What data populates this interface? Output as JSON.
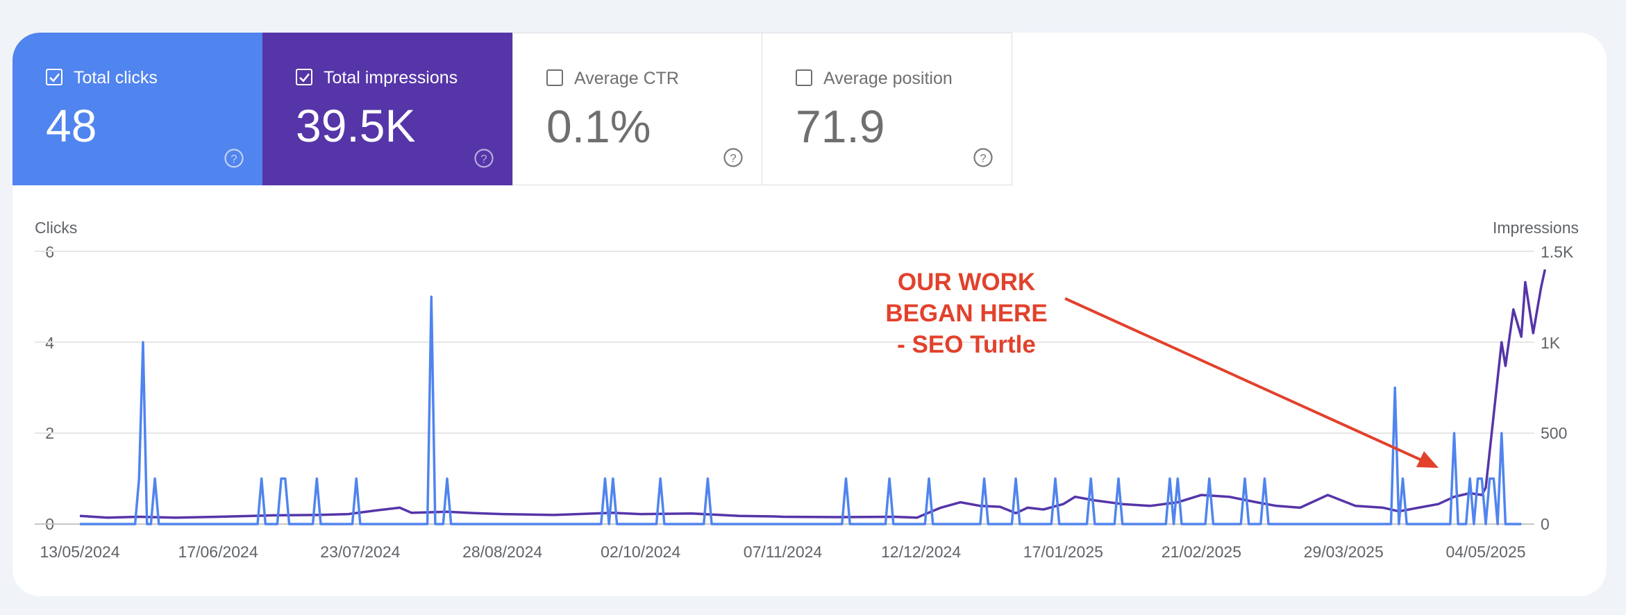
{
  "tiles": [
    {
      "label": "Total clicks",
      "value": "48",
      "checked": true,
      "color": "#5084ee"
    },
    {
      "label": "Total impressions",
      "value": "39.5K",
      "checked": true,
      "color": "#5535a8"
    },
    {
      "label": "Average CTR",
      "value": "0.1%",
      "checked": false
    },
    {
      "label": "Average position",
      "value": "71.9",
      "checked": false
    }
  ],
  "annotation": {
    "line1": "OUR WORK",
    "line2": "BEGAN HERE",
    "line3": "- SEO Turtle",
    "color": "#e2412c"
  },
  "chart_data": {
    "type": "line",
    "left_axis_label": "Clicks",
    "right_axis_label": "Impressions",
    "left_ticks": [
      "6",
      "4",
      "2",
      "0"
    ],
    "right_ticks": [
      "1.5K",
      "1K",
      "500",
      "0"
    ],
    "left_ylim": [
      0,
      6
    ],
    "right_ylim": [
      0,
      1500
    ],
    "x_tick_labels": [
      "13/05/2024",
      "17/06/2024",
      "23/07/2024",
      "28/08/2024",
      "02/10/2024",
      "07/11/2024",
      "12/12/2024",
      "17/01/2025",
      "21/02/2025",
      "29/03/2025",
      "04/05/2025"
    ],
    "x_range": [
      "13/05/2024",
      "08/05/2025"
    ],
    "grid": true,
    "series": [
      {
        "name": "Clicks",
        "axis": "left",
        "color": "#5084ee",
        "points": [
          [
            "13/05/2024",
            0
          ],
          [
            "27/05/2024",
            0
          ],
          [
            "28/05/2024",
            1
          ],
          [
            "29/05/2024",
            4
          ],
          [
            "30/05/2024",
            0
          ],
          [
            "31/05/2024",
            0
          ],
          [
            "01/06/2024",
            1
          ],
          [
            "02/06/2024",
            0
          ],
          [
            "27/06/2024",
            0
          ],
          [
            "28/06/2024",
            1
          ],
          [
            "29/06/2024",
            0
          ],
          [
            "02/07/2024",
            0
          ],
          [
            "03/07/2024",
            1
          ],
          [
            "04/07/2024",
            1
          ],
          [
            "05/07/2024",
            0
          ],
          [
            "11/07/2024",
            0
          ],
          [
            "12/07/2024",
            1
          ],
          [
            "13/07/2024",
            0
          ],
          [
            "21/07/2024",
            0
          ],
          [
            "22/07/2024",
            1
          ],
          [
            "23/07/2024",
            0
          ],
          [
            "09/08/2024",
            0
          ],
          [
            "10/08/2024",
            5
          ],
          [
            "11/08/2024",
            0
          ],
          [
            "13/08/2024",
            0
          ],
          [
            "14/08/2024",
            1
          ],
          [
            "15/08/2024",
            0
          ],
          [
            "22/09/2024",
            0
          ],
          [
            "23/09/2024",
            1
          ],
          [
            "24/09/2024",
            0
          ],
          [
            "25/09/2024",
            1
          ],
          [
            "26/09/2024",
            0
          ],
          [
            "06/10/2024",
            0
          ],
          [
            "07/10/2024",
            1
          ],
          [
            "08/10/2024",
            0
          ],
          [
            "18/10/2024",
            0
          ],
          [
            "19/10/2024",
            1
          ],
          [
            "20/10/2024",
            0
          ],
          [
            "22/11/2024",
            0
          ],
          [
            "23/11/2024",
            1
          ],
          [
            "24/11/2024",
            0
          ],
          [
            "03/12/2024",
            0
          ],
          [
            "04/12/2024",
            1
          ],
          [
            "05/12/2024",
            0
          ],
          [
            "13/12/2024",
            0
          ],
          [
            "14/12/2024",
            1
          ],
          [
            "15/12/2024",
            0
          ],
          [
            "27/12/2024",
            0
          ],
          [
            "28/12/2024",
            1
          ],
          [
            "29/12/2024",
            0
          ],
          [
            "04/01/2025",
            0
          ],
          [
            "05/01/2025",
            1
          ],
          [
            "06/01/2025",
            0
          ],
          [
            "14/01/2025",
            0
          ],
          [
            "15/01/2025",
            1
          ],
          [
            "16/01/2025",
            0
          ],
          [
            "23/01/2025",
            0
          ],
          [
            "24/01/2025",
            1
          ],
          [
            "25/01/2025",
            0
          ],
          [
            "30/01/2025",
            0
          ],
          [
            "31/01/2025",
            1
          ],
          [
            "01/02/2025",
            0
          ],
          [
            "12/02/2025",
            0
          ],
          [
            "13/02/2025",
            1
          ],
          [
            "14/02/2025",
            0
          ],
          [
            "15/02/2025",
            1
          ],
          [
            "16/02/2025",
            0
          ],
          [
            "22/02/2025",
            0
          ],
          [
            "23/02/2025",
            1
          ],
          [
            "24/02/2025",
            0
          ],
          [
            "03/03/2025",
            0
          ],
          [
            "04/03/2025",
            1
          ],
          [
            "05/03/2025",
            0
          ],
          [
            "08/03/2025",
            0
          ],
          [
            "09/03/2025",
            1
          ],
          [
            "10/03/2025",
            0
          ],
          [
            "10/04/2025",
            0
          ],
          [
            "11/04/2025",
            3
          ],
          [
            "12/04/2025",
            0
          ],
          [
            "13/04/2025",
            1
          ],
          [
            "14/04/2025",
            0
          ],
          [
            "25/04/2025",
            0
          ],
          [
            "26/04/2025",
            2
          ],
          [
            "27/04/2025",
            0
          ],
          [
            "29/04/2025",
            0
          ],
          [
            "30/04/2025",
            1
          ],
          [
            "01/05/2025",
            0
          ],
          [
            "02/05/2025",
            1
          ],
          [
            "03/05/2025",
            1
          ],
          [
            "04/05/2025",
            0
          ],
          [
            "05/05/2025",
            1
          ],
          [
            "06/05/2025",
            1
          ],
          [
            "07/05/2025",
            0
          ],
          [
            "08/05/2025",
            2
          ],
          [
            "09/05/2025",
            0
          ],
          [
            "13/05/2025",
            0
          ]
        ]
      },
      {
        "name": "Impressions",
        "axis": "right",
        "color": "#5535a8",
        "points": [
          [
            "13/05/2024",
            45
          ],
          [
            "20/05/2024",
            35
          ],
          [
            "28/05/2024",
            40
          ],
          [
            "06/06/2024",
            35
          ],
          [
            "17/06/2024",
            40
          ],
          [
            "01/07/2024",
            48
          ],
          [
            "12/07/2024",
            50
          ],
          [
            "20/07/2024",
            55
          ],
          [
            "27/07/2024",
            75
          ],
          [
            "02/08/2024",
            90
          ],
          [
            "05/08/2024",
            62
          ],
          [
            "14/08/2024",
            68
          ],
          [
            "21/08/2024",
            60
          ],
          [
            "28/08/2024",
            55
          ],
          [
            "10/09/2024",
            50
          ],
          [
            "25/09/2024",
            62
          ],
          [
            "02/10/2024",
            55
          ],
          [
            "15/10/2024",
            58
          ],
          [
            "27/10/2024",
            45
          ],
          [
            "05/11/2024",
            42
          ],
          [
            "07/11/2024",
            40
          ],
          [
            "22/11/2024",
            38
          ],
          [
            "05/12/2024",
            40
          ],
          [
            "11/12/2024",
            35
          ],
          [
            "12/12/2024",
            45
          ],
          [
            "17/12/2024",
            90
          ],
          [
            "22/12/2024",
            120
          ],
          [
            "27/12/2024",
            100
          ],
          [
            "01/01/2025",
            95
          ],
          [
            "05/01/2025",
            60
          ],
          [
            "08/01/2025",
            90
          ],
          [
            "12/01/2025",
            80
          ],
          [
            "17/01/2025",
            110
          ],
          [
            "20/01/2025",
            150
          ],
          [
            "25/01/2025",
            130
          ],
          [
            "01/02/2025",
            110
          ],
          [
            "08/02/2025",
            100
          ],
          [
            "15/02/2025",
            120
          ],
          [
            "21/02/2025",
            160
          ],
          [
            "28/02/2025",
            150
          ],
          [
            "07/03/2025",
            120
          ],
          [
            "12/03/2025",
            100
          ],
          [
            "18/03/2025",
            90
          ],
          [
            "25/03/2025",
            160
          ],
          [
            "01/04/2025",
            100
          ],
          [
            "08/04/2025",
            90
          ],
          [
            "12/04/2025",
            70
          ],
          [
            "17/04/2025",
            90
          ],
          [
            "22/04/2025",
            110
          ],
          [
            "26/04/2025",
            150
          ],
          [
            "30/04/2025",
            170
          ],
          [
            "03/05/2025",
            160
          ],
          [
            "04/05/2025",
            200
          ],
          [
            "06/05/2025",
            600
          ],
          [
            "08/05/2025",
            1000
          ],
          [
            "09/05/2025",
            870
          ],
          [
            "11/05/2025",
            1180
          ],
          [
            "13/05/2025",
            1030
          ],
          [
            "14/05/2025",
            1330
          ],
          [
            "16/05/2025",
            1050
          ],
          [
            "18/05/2025",
            1300
          ],
          [
            "19/05/2025",
            1400
          ]
        ]
      }
    ]
  }
}
